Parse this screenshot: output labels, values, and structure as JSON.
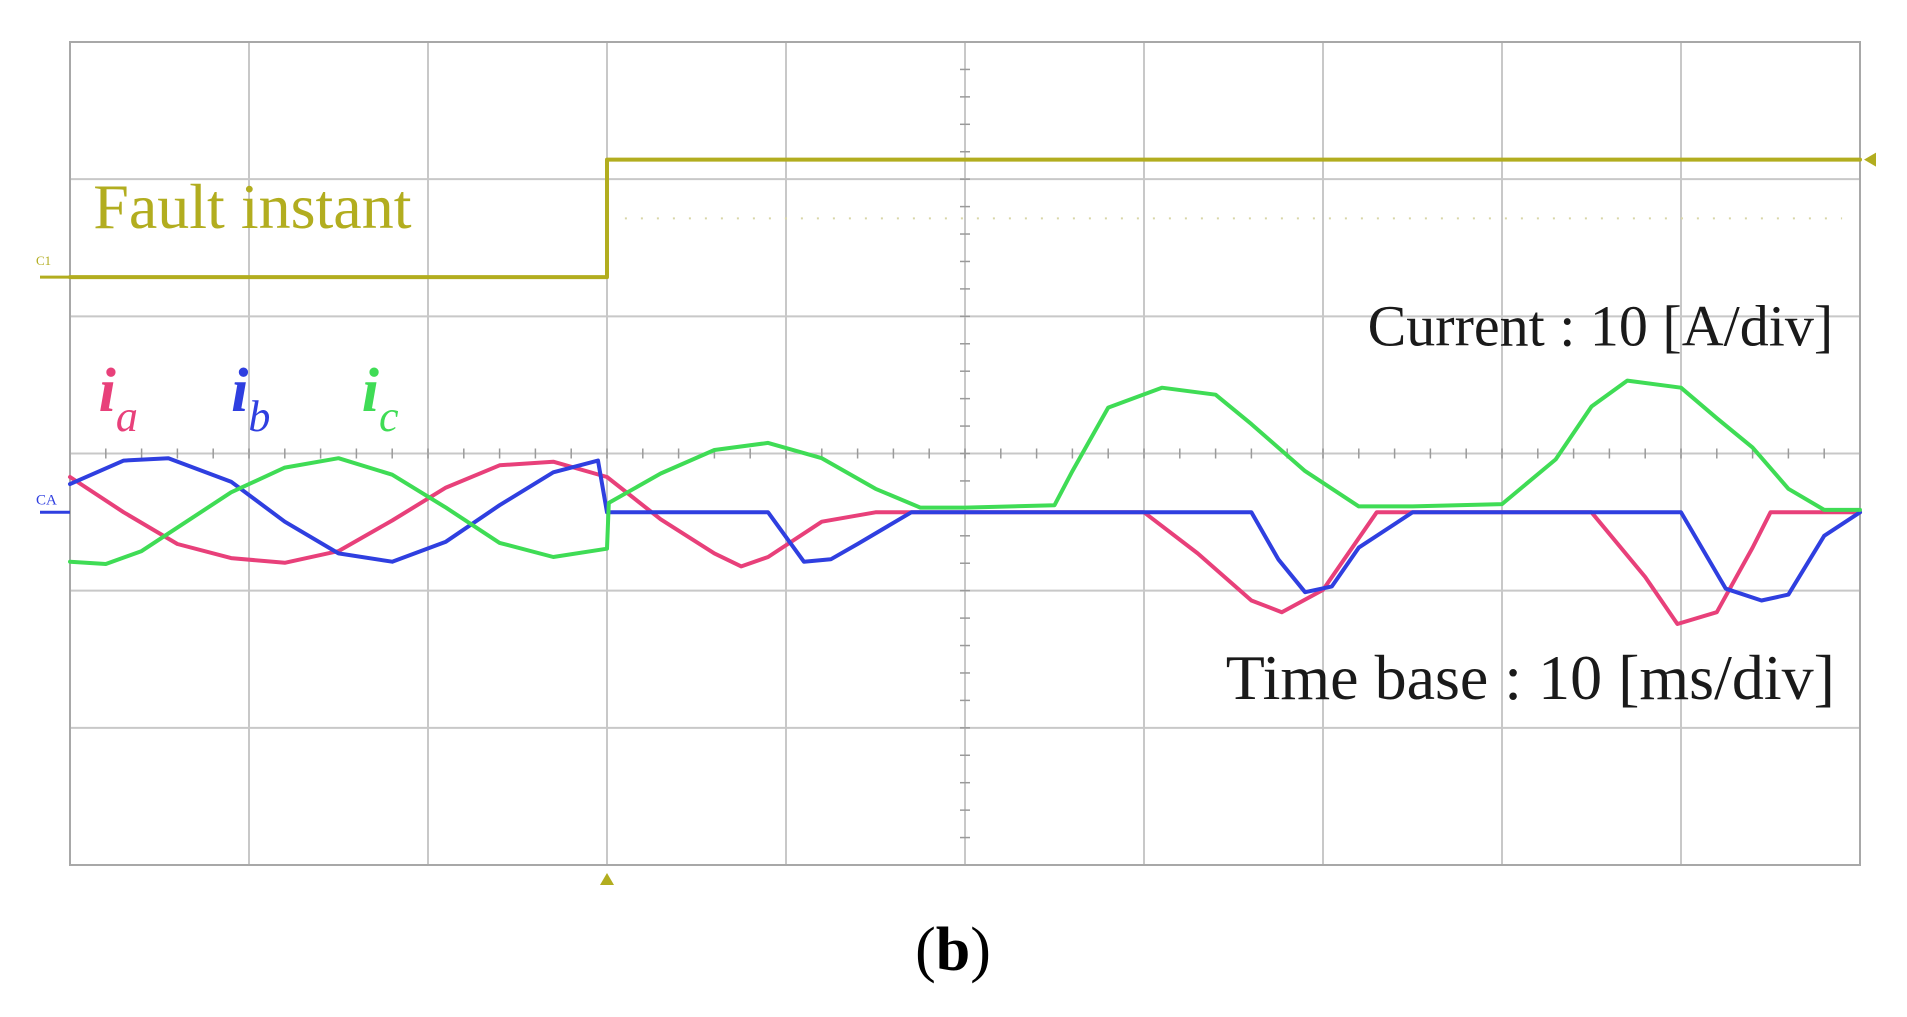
{
  "figure": {
    "caption_open": "(",
    "caption_letter": "b",
    "caption_close": ")"
  },
  "chart_data": {
    "type": "line",
    "title": "",
    "xlabel": "",
    "ylabel": "",
    "x_unit": "ms",
    "y_unit": "A",
    "xlim": [
      0,
      100
    ],
    "ylim": [
      -30,
      40
    ],
    "grid": true,
    "grid_divisions": {
      "x": 10,
      "y": 6
    },
    "colors": {
      "ia": "#e8407a",
      "ib": "#2f3fe0",
      "ic": "#3fdc55",
      "fault": "#b2ad1f",
      "grid": "#c8c8c8",
      "frame": "#a8a8a8",
      "text": "#1a1a1a"
    },
    "annotations": {
      "fault_label": "Fault instant",
      "current_scale": "Current : 10 [A/div]",
      "time_scale": "Time base : 10 [ms/div]",
      "channel1_marker": "C1",
      "channel_current_marker": "CA"
    },
    "legend": [
      {
        "key": "ia",
        "symbol": "i",
        "subscript": "a"
      },
      {
        "key": "ib",
        "symbol": "i",
        "subscript": "b"
      },
      {
        "key": "ic",
        "symbol": "i",
        "subscript": "c"
      }
    ],
    "fault_signal": {
      "name": "Fault instant",
      "x": [
        0,
        30,
        30,
        100
      ],
      "y": [
        20,
        20,
        30,
        30
      ]
    },
    "series": [
      {
        "key": "ia",
        "x": [
          0,
          3,
          6,
          9,
          12,
          15,
          18,
          21,
          24,
          27,
          30,
          33,
          36,
          37.5,
          39,
          42,
          45,
          50,
          55,
          60,
          63,
          66,
          67.7,
          70,
          73,
          75,
          80,
          85,
          88,
          89.8,
          92,
          94,
          95,
          100
        ],
        "y": [
          3,
          0,
          -2.7,
          -3.9,
          -4.3,
          -3.3,
          -0.7,
          2.1,
          4.0,
          4.3,
          3.0,
          -0.6,
          -3.5,
          -4.6,
          -3.8,
          -0.8,
          0,
          0,
          0,
          0,
          -3.5,
          -7.5,
          -8.5,
          -6.6,
          0,
          0,
          0,
          0,
          -5.5,
          -9.5,
          -8.5,
          -3,
          0,
          0
        ]
      },
      {
        "key": "ib",
        "x": [
          0,
          3,
          5.5,
          9,
          12,
          15,
          18,
          21,
          24,
          27,
          29.5,
          30,
          33,
          36,
          39,
          41,
          42.5,
          44,
          47,
          50,
          55,
          60,
          66,
          67.5,
          69,
          70.5,
          72,
          75,
          80,
          85,
          90,
          92.5,
          94.5,
          96,
          98,
          100
        ],
        "y": [
          2.4,
          4.4,
          4.6,
          2.6,
          -0.8,
          -3.5,
          -4.2,
          -2.5,
          0.6,
          3.4,
          4.4,
          0,
          0,
          0,
          0,
          -4.2,
          -4.0,
          -2.7,
          0,
          0,
          0,
          0,
          0,
          -4.0,
          -6.8,
          -6.3,
          -3,
          0,
          0,
          0,
          0,
          -6.5,
          -7.5,
          -7,
          -2,
          0
        ]
      },
      {
        "key": "ic",
        "x": [
          0,
          2,
          4,
          6,
          9,
          12,
          15,
          18,
          21,
          24,
          27,
          30,
          30.1,
          33,
          36,
          39,
          42,
          45,
          47.5,
          50,
          55,
          56,
          58,
          61,
          64,
          66,
          69,
          72,
          75,
          80,
          83,
          85,
          87,
          90,
          92,
          94,
          96,
          98,
          100
        ],
        "y": [
          -4.2,
          -4.4,
          -3.3,
          -1.3,
          1.7,
          3.8,
          4.6,
          3.2,
          0.4,
          -2.6,
          -3.8,
          -3.1,
          0.8,
          3.3,
          5.3,
          5.9,
          4.6,
          2.0,
          0.4,
          0.4,
          0.6,
          3.5,
          8.9,
          10.6,
          10.0,
          7.5,
          3.5,
          0.5,
          0.5,
          0.7,
          4.5,
          9.0,
          11.2,
          10.6,
          8.0,
          5.5,
          2.0,
          0.2,
          0.2
        ]
      }
    ]
  }
}
